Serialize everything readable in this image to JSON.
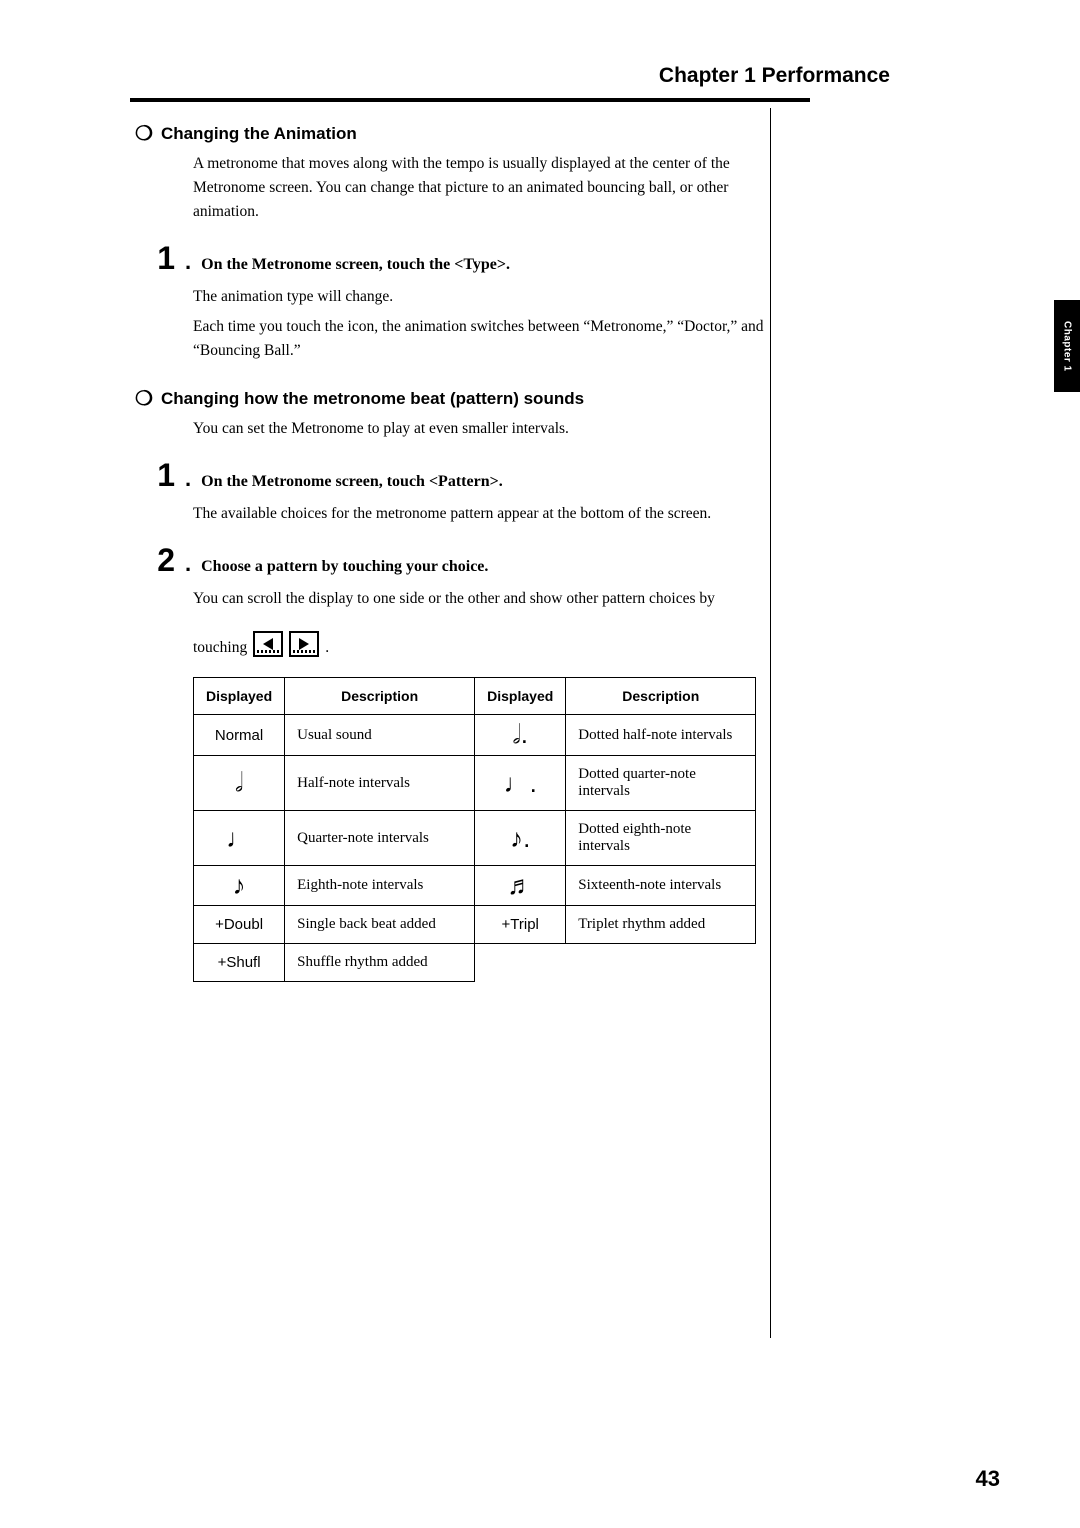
{
  "chapter_header": "Chapter 1 Performance",
  "side_tab": "Chapter 1",
  "page_number": "43",
  "sec_anim": {
    "heading": "Changing the Animation",
    "intro": "A metronome that moves along with the tempo is usually displayed at the center of the Metronome screen. You can change that picture to an animated bouncing ball, or other animation.",
    "step1": "On the Metronome screen, touch the <Type>.",
    "step1_body1": "The animation type will change.",
    "step1_body2": "Each time you touch the icon, the animation switches between “Metronome,” “Doctor,” and “Bouncing Ball.”"
  },
  "sec_pattern": {
    "heading": "Changing how the metronome beat (pattern) sounds",
    "intro": "You can set the Metronome to play at even smaller intervals.",
    "step1": "On the Metronome screen, touch <Pattern>.",
    "step1_body": "The available choices for the metronome pattern appear at the bottom of the screen.",
    "step2": "Choose a pattern by touching your choice.",
    "step2_body": "You can scroll the display to one side or the other and show other pattern choices by",
    "touching_word": "touching",
    "touching_period": "."
  },
  "table": {
    "headers": {
      "disp": "Displayed",
      "desc": "Description"
    },
    "rows": [
      {
        "d1": "Normal",
        "n1": false,
        "desc1": "Usual sound",
        "d2": "𝅗𝅥.",
        "n2": true,
        "desc2": "Dotted half-note intervals"
      },
      {
        "d1": "𝅗𝅥",
        "n1": true,
        "desc1": "Half-note intervals",
        "d2": "♩.",
        "n2": true,
        "desc2": "Dotted quarter-note intervals"
      },
      {
        "d1": "♩",
        "n1": true,
        "desc1": "Quarter-note intervals",
        "d2": "♪.",
        "n2": true,
        "desc2": "Dotted eighth-note intervals"
      },
      {
        "d1": "♪",
        "n1": true,
        "desc1": "Eighth-note intervals",
        "d2": "♬",
        "n2": true,
        "desc2": "Sixteenth-note intervals"
      },
      {
        "d1": "+Doubl",
        "n1": false,
        "desc1": "Single back beat added",
        "d2": "+Tripl",
        "n2": false,
        "desc2": "Triplet rhythm added"
      },
      {
        "d1": "+Shufl",
        "n1": false,
        "desc1": "Shuffle rhythm added",
        "d2": "",
        "n2": false,
        "desc2": ""
      }
    ]
  }
}
